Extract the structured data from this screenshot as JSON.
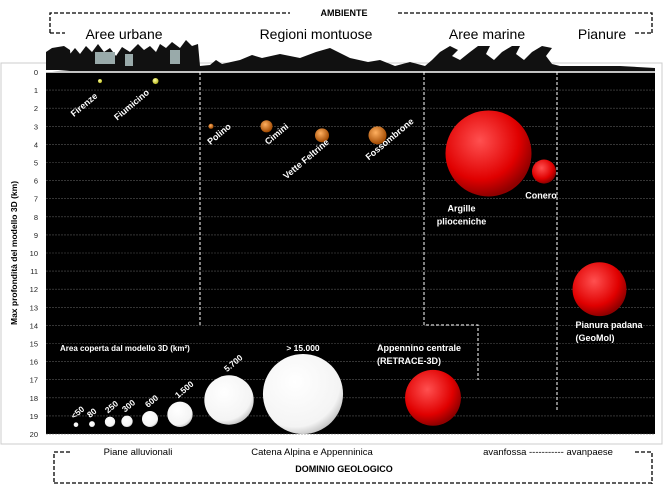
{
  "top": {
    "title": "AMBIENTE",
    "environments": [
      "Aree urbane",
      "Regioni montuose",
      "Aree marine",
      "Pianure"
    ]
  },
  "bottom": {
    "title": "DOMINIO GEOLOGICO",
    "domains": [
      "Piane alluvionali",
      "Catena Alpina e Appenninica",
      "avanfossa ----------- avanpaese"
    ]
  },
  "chart_data": {
    "type": "scatter",
    "subtype": "bubble",
    "ylabel": "Max profondità del modello 3D (km)",
    "ylim": [
      0,
      20
    ],
    "y_inverted": true,
    "yticks": [
      "0",
      "1",
      "2",
      "3",
      "4",
      "5",
      "6",
      "7",
      "8",
      "9",
      "10",
      "11",
      "12",
      "13",
      "14",
      "15",
      "16",
      "17",
      "18",
      "19",
      "20"
    ],
    "grid": true,
    "colors": {
      "urban": "#e8e84a",
      "mountain": "#e07a1a",
      "marine": "#e00000",
      "background": "#000000"
    },
    "points": [
      {
        "label": "Firenze",
        "x": 1,
        "depth_km": 0.5,
        "area_km2": 40,
        "group": "urban"
      },
      {
        "label": "Fiumicino",
        "x": 2,
        "depth_km": 0.5,
        "area_km2": 85,
        "group": "urban"
      },
      {
        "label": "Polino",
        "x": 3,
        "depth_km": 3,
        "area_km2": 60,
        "group": "mountain"
      },
      {
        "label": "Cimini",
        "x": 4,
        "depth_km": 3,
        "area_km2": 340,
        "group": "mountain"
      },
      {
        "label": "Vette Feltrine",
        "x": 5,
        "depth_km": 3.5,
        "area_km2": 460,
        "group": "mountain"
      },
      {
        "label": "Fossombrone",
        "x": 6,
        "depth_km": 3.5,
        "area_km2": 760,
        "group": "mountain"
      },
      {
        "label": "Argille plioceniche",
        "x": 8,
        "depth_km": 4.5,
        "area_km2": 17300,
        "group": "marine"
      },
      {
        "label": "Conero",
        "x": 9,
        "depth_km": 5.5,
        "area_km2": 1350,
        "group": "marine"
      },
      {
        "label": "Pianura padana (GeoMol)",
        "x": 10,
        "depth_km": 12,
        "area_km2": 6800,
        "group": "marine"
      },
      {
        "label": "Appennino centrale (RETRACE-3D)",
        "x": 7,
        "depth_km": 18,
        "area_km2": 7300,
        "group": "marine"
      }
    ],
    "size_legend": {
      "title": "Area coperta dal modello 3D (km²)",
      "entries": [
        {
          "label": "<50",
          "area_km2": 50
        },
        {
          "label": "80",
          "area_km2": 80
        },
        {
          "label": "250",
          "area_km2": 250
        },
        {
          "label": "300",
          "area_km2": 300
        },
        {
          "label": "600",
          "area_km2": 600
        },
        {
          "label": "1.500",
          "area_km2": 1500
        },
        {
          "label": "5.700",
          "area_km2": 5700
        },
        {
          "label": "> 15.000",
          "area_km2": 15000
        }
      ]
    }
  }
}
